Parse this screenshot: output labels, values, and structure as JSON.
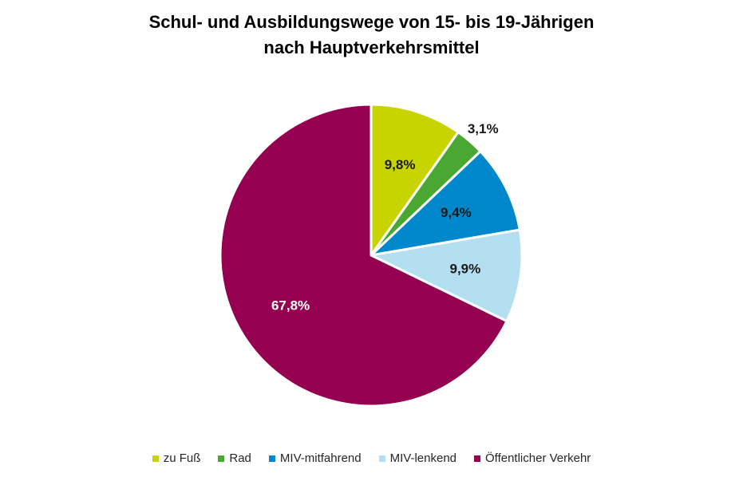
{
  "chart_data": {
    "type": "pie",
    "title_lines": [
      "Schul- und Ausbildungswege von 15- bis 19-Jährigen",
      "nach Hauptverkehrsmittel"
    ],
    "slices": [
      {
        "label": "zu Fuß",
        "value": 9.8,
        "value_label": "9,8%",
        "color": "#c8d400",
        "label_color": "#1a1a1a",
        "label_outside": false
      },
      {
        "label": "Rad",
        "value": 3.1,
        "value_label": "3,1%",
        "color": "#4aa832",
        "label_color": "#1a1a1a",
        "label_outside": true
      },
      {
        "label": "MIV-mitfahrend",
        "value": 9.4,
        "value_label": "9,4%",
        "color": "#0087cc",
        "label_color": "#1a1a1a",
        "label_outside": false
      },
      {
        "label": "MIV-lenkend",
        "value": 9.9,
        "value_label": "9,9%",
        "color": "#b3dff0",
        "label_color": "#1a1a1a",
        "label_outside": false
      },
      {
        "label": "Öffentlicher Verkehr",
        "value": 67.8,
        "value_label": "67,8%",
        "color": "#960050",
        "label_color": "#ffffff",
        "label_outside": false
      }
    ],
    "legend_position": "bottom",
    "start_angle": "12 o'clock, clockwise"
  }
}
